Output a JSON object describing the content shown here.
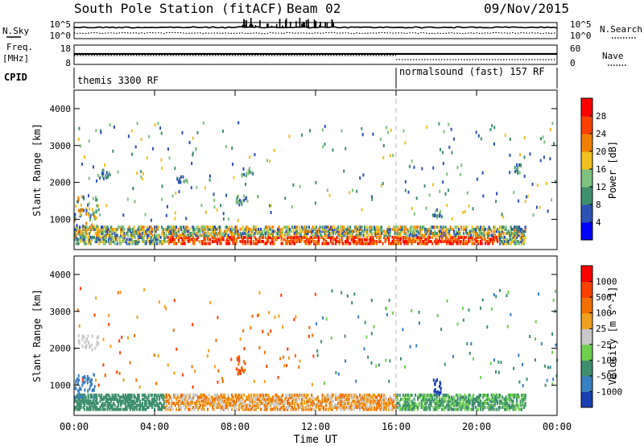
{
  "header": {
    "title": "South Pole Station (fitACF)",
    "beam": "Beam 02",
    "date": "09/Nov/2015"
  },
  "noise_panel": {
    "left_label": "N.Sky",
    "right_label": "N.Search",
    "left_ticks": [
      "10^5",
      "10^0"
    ],
    "right_ticks": [
      "10^5",
      "10^0"
    ]
  },
  "freq_panel": {
    "left_label_1": "Freq.",
    "left_label_2": "[MHz]",
    "right_label": "Nave",
    "left_ticks": [
      "18",
      "8"
    ],
    "right_ticks": [
      "60",
      "0"
    ]
  },
  "cpid_panel": {
    "label": "CPID",
    "program_1": "themis 3300 RF",
    "program_2": "normalsound (fast) 157 RF"
  },
  "chart_data": [
    {
      "type": "heatmap",
      "name": "power",
      "ylabel": "Slant Range [km]",
      "yticks": [
        "1000",
        "2000",
        "3000",
        "4000"
      ],
      "ylim": [
        180,
        4500
      ],
      "xlim": [
        0,
        24
      ],
      "colorbar_label": "Power [dB]",
      "colorbar_ticks": [
        "4",
        "8",
        "12",
        "16",
        "20",
        "24",
        "28"
      ],
      "colors": [
        "#0000ff",
        "#2e52b4",
        "#3f8f6e",
        "#7fc27f",
        "#f0c020",
        "#f08000",
        "#ff4000",
        "#ff0000"
      ]
    },
    {
      "type": "heatmap",
      "name": "velocity",
      "ylabel": "Slant Range [km]",
      "yticks": [
        "1000",
        "2000",
        "3000",
        "4000"
      ],
      "ylim": [
        180,
        4500
      ],
      "xlim": [
        0,
        24
      ],
      "colorbar_label": "Velocity [m s^-1]",
      "colorbar_ticks": [
        "1000",
        "500",
        "100",
        "25",
        "-25",
        "-100",
        "-500",
        "-1000"
      ],
      "colors": [
        "#1a3fb0",
        "#3a7fbf",
        "#3f8f6e",
        "#6fd04f",
        "#c8c8c8",
        "#f0a020",
        "#f07000",
        "#ff4000",
        "#ff0000"
      ]
    }
  ],
  "xaxis": {
    "label": "Time UT",
    "ticks": [
      "00:00",
      "04:00",
      "08:00",
      "12:00",
      "16:00",
      "20:00",
      "00:00"
    ]
  }
}
